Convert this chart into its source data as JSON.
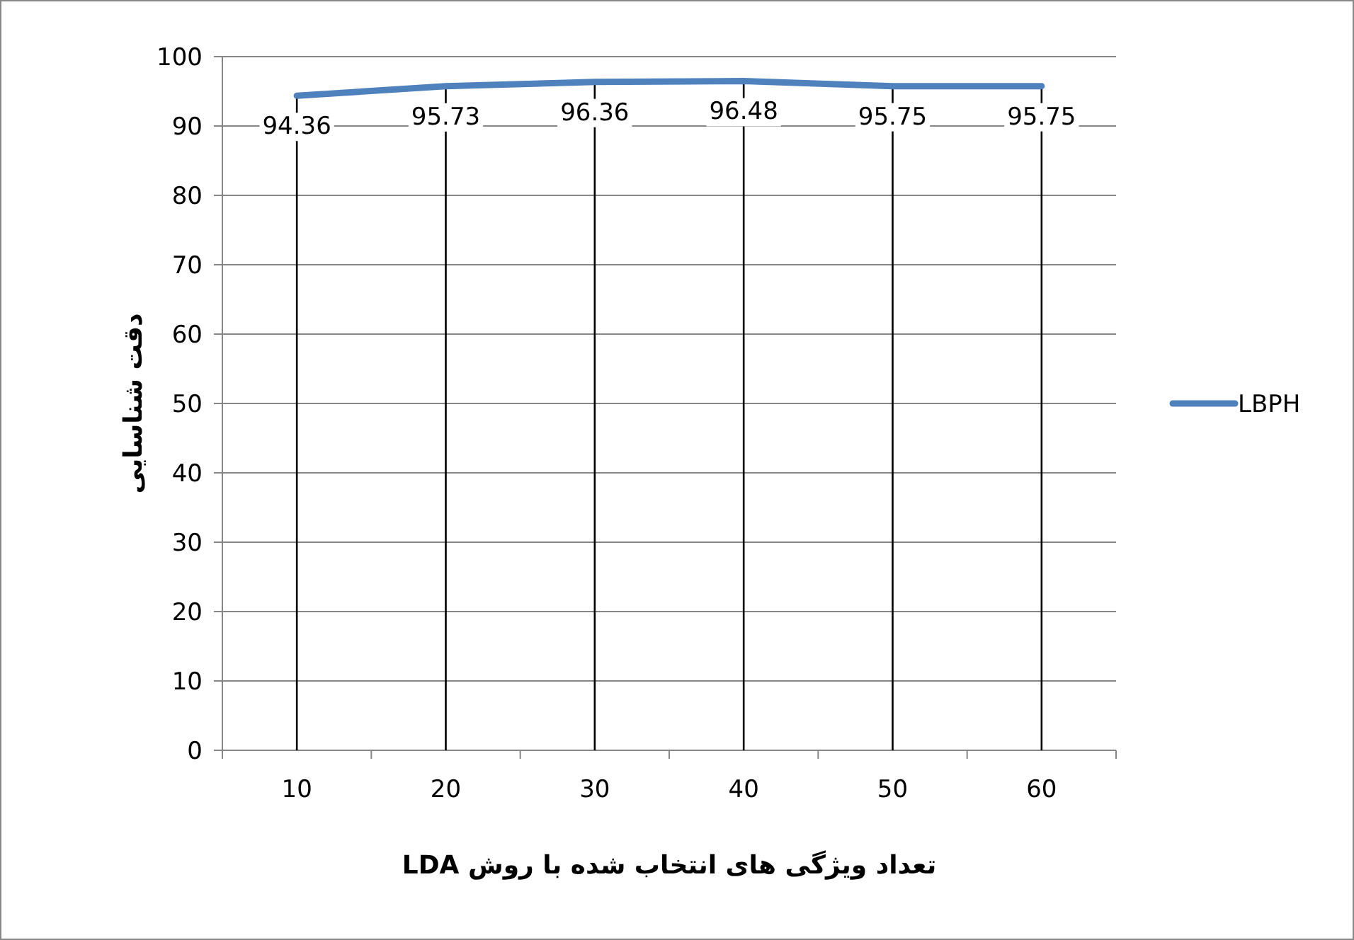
{
  "chart_data": {
    "type": "line",
    "xlabel": "تعداد ویژگی های انتخاب شده با روش LDA",
    "ylabel": "دقت شناسایی",
    "categories": [
      "10",
      "20",
      "30",
      "40",
      "50",
      "60"
    ],
    "series": [
      {
        "name": "LBPH",
        "color": "#4f81bd",
        "values": [
          94.36,
          95.73,
          96.36,
          96.48,
          95.75,
          95.75
        ]
      }
    ],
    "ylim": [
      0,
      100
    ],
    "yticks": [
      0,
      10,
      20,
      30,
      40,
      50,
      60,
      70,
      80,
      90,
      100
    ],
    "grid": true,
    "legend": "right",
    "data_labels": true,
    "marker": "none",
    "line_style": "solid"
  }
}
